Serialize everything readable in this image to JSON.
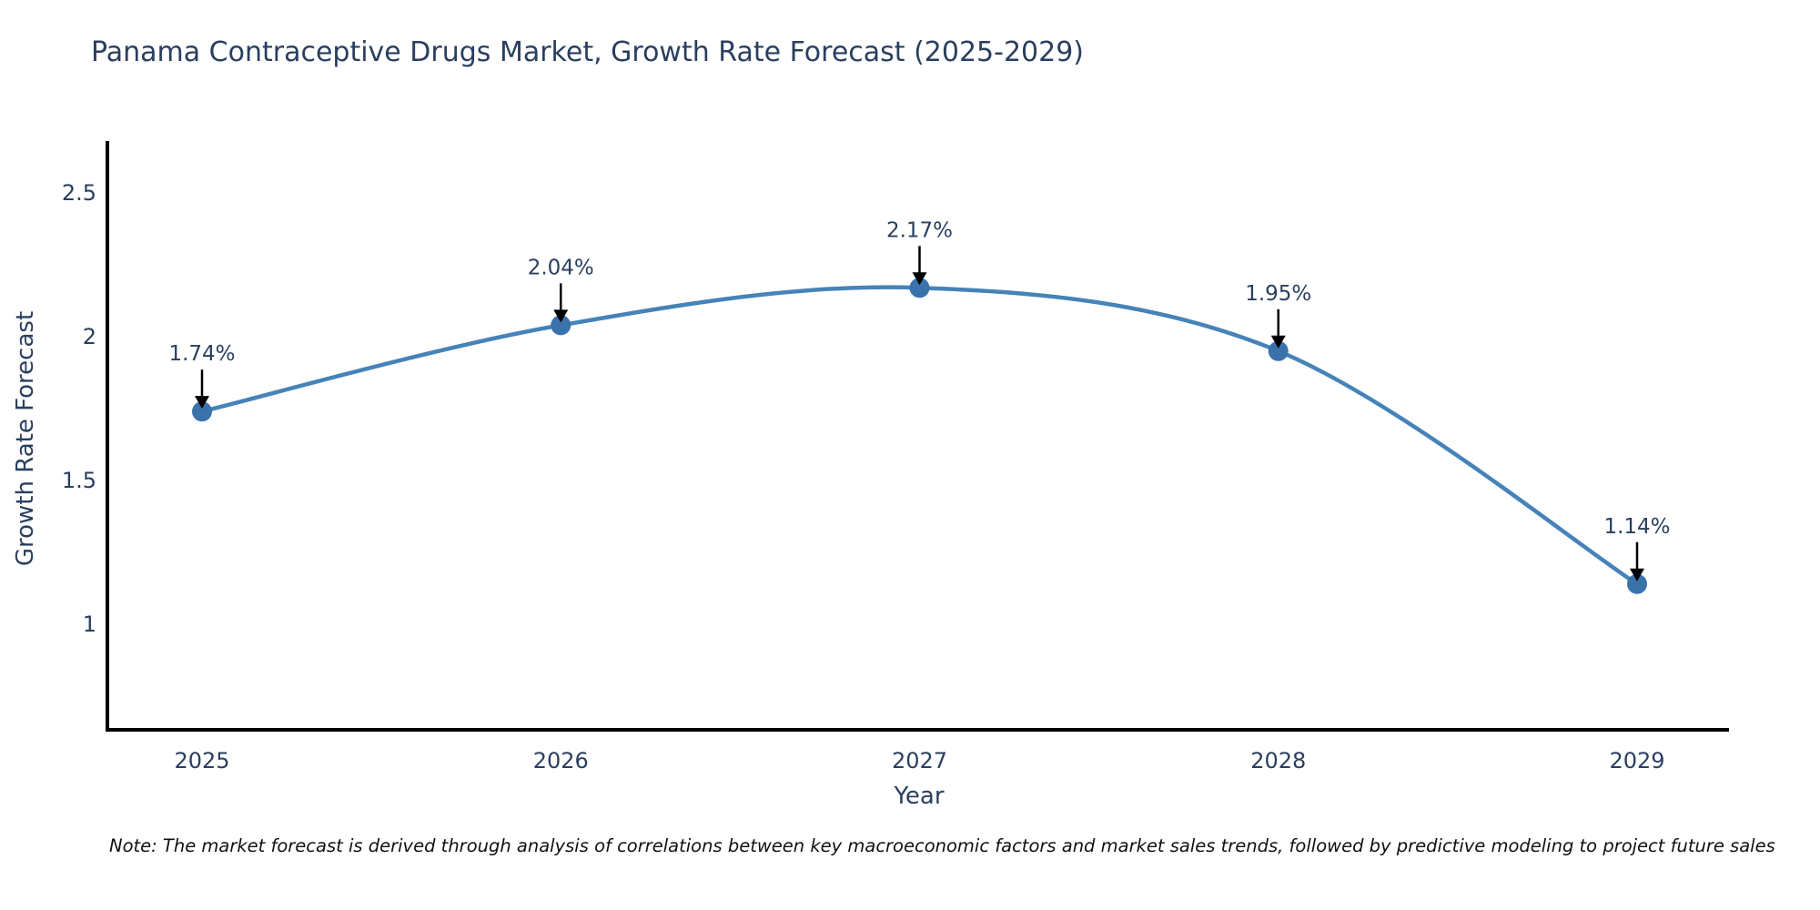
{
  "header": {
    "title": "Panama Contraceptive Drugs Market, Growth Rate Forecast (2025-2029)"
  },
  "footnote": {
    "text": "Note: The market forecast is derived through analysis of correlations between key macroeconomic factors and market sales trends, followed by predictive modeling to project future sales"
  },
  "chart_data": {
    "type": "line",
    "title": "Panama Contraceptive Drugs Market, Growth Rate Forecast (2025-2029)",
    "xlabel": "Year",
    "ylabel": "Growth Rate Forecast",
    "categories": [
      "2025",
      "2026",
      "2027",
      "2028",
      "2029"
    ],
    "values": [
      1.74,
      2.04,
      2.17,
      1.95,
      1.14
    ],
    "point_labels": [
      "1.74%",
      "2.04%",
      "2.17%",
      "1.95%",
      "1.14%"
    ],
    "yticks": [
      1,
      1.5,
      2,
      2.5
    ],
    "ylim": [
      0.63,
      2.67
    ],
    "grid": "off",
    "legend": "none",
    "line_shape": "spline",
    "colors": {
      "line": "#4583b8",
      "marker": "#3a72ab",
      "axis": "#000000",
      "annotation_arrow": "#000000",
      "text": "#2a3f5f"
    }
  }
}
